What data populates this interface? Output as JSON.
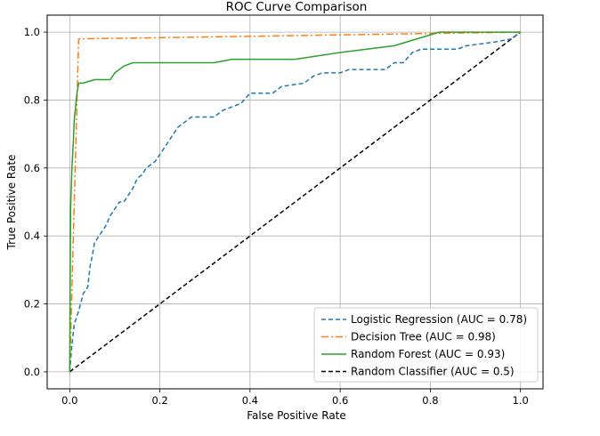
{
  "chart_data": {
    "type": "line",
    "title": "ROC Curve Comparison",
    "xlabel": "False Positive Rate",
    "ylabel": "True Positive Rate",
    "xlim": [
      -0.05,
      1.05
    ],
    "ylim": [
      -0.05,
      1.05
    ],
    "xticks": [
      "0.0",
      "0.2",
      "0.4",
      "0.6",
      "0.8",
      "1.0"
    ],
    "yticks": [
      "0.0",
      "0.2",
      "0.4",
      "0.6",
      "0.8",
      "1.0"
    ],
    "grid": true,
    "legend_position": "lower-right",
    "series": [
      {
        "name": "Logistic Regression (AUC = 0.78)",
        "color": "#1f77b4",
        "linestyle": "dashed",
        "points": [
          [
            0,
            0
          ],
          [
            0.005,
            0.08
          ],
          [
            0.01,
            0.14
          ],
          [
            0.02,
            0.18
          ],
          [
            0.03,
            0.23
          ],
          [
            0.04,
            0.25
          ],
          [
            0.045,
            0.31
          ],
          [
            0.05,
            0.34
          ],
          [
            0.055,
            0.38
          ],
          [
            0.06,
            0.39
          ],
          [
            0.07,
            0.41
          ],
          [
            0.08,
            0.43
          ],
          [
            0.09,
            0.46
          ],
          [
            0.1,
            0.48
          ],
          [
            0.11,
            0.5
          ],
          [
            0.12,
            0.5
          ],
          [
            0.13,
            0.52
          ],
          [
            0.14,
            0.54
          ],
          [
            0.15,
            0.57
          ],
          [
            0.16,
            0.58
          ],
          [
            0.17,
            0.6
          ],
          [
            0.18,
            0.61
          ],
          [
            0.19,
            0.62
          ],
          [
            0.2,
            0.64
          ],
          [
            0.21,
            0.66
          ],
          [
            0.22,
            0.68
          ],
          [
            0.23,
            0.7
          ],
          [
            0.24,
            0.72
          ],
          [
            0.25,
            0.73
          ],
          [
            0.27,
            0.75
          ],
          [
            0.32,
            0.75
          ],
          [
            0.34,
            0.77
          ],
          [
            0.38,
            0.79
          ],
          [
            0.4,
            0.82
          ],
          [
            0.45,
            0.82
          ],
          [
            0.47,
            0.84
          ],
          [
            0.52,
            0.85
          ],
          [
            0.54,
            0.87
          ],
          [
            0.56,
            0.88
          ],
          [
            0.6,
            0.88
          ],
          [
            0.62,
            0.89
          ],
          [
            0.7,
            0.89
          ],
          [
            0.72,
            0.91
          ],
          [
            0.74,
            0.91
          ],
          [
            0.76,
            0.94
          ],
          [
            0.78,
            0.95
          ],
          [
            0.86,
            0.95
          ],
          [
            0.88,
            0.96
          ],
          [
            0.94,
            0.97
          ],
          [
            0.98,
            0.98
          ],
          [
            1.0,
            1.0
          ]
        ]
      },
      {
        "name": "Decision Tree (AUC = 0.98)",
        "color": "#ff7f0e",
        "linestyle": "dashdot",
        "points": [
          [
            0,
            0
          ],
          [
            0.02,
            0.98
          ],
          [
            1.0,
            1.0
          ]
        ]
      },
      {
        "name": "Random Forest (AUC = 0.93)",
        "color": "#2ca02c",
        "linestyle": "solid",
        "points": [
          [
            0,
            0
          ],
          [
            0.002,
            0.48
          ],
          [
            0.005,
            0.6
          ],
          [
            0.008,
            0.68
          ],
          [
            0.01,
            0.74
          ],
          [
            0.013,
            0.78
          ],
          [
            0.016,
            0.82
          ],
          [
            0.02,
            0.85
          ],
          [
            0.03,
            0.85
          ],
          [
            0.055,
            0.86
          ],
          [
            0.09,
            0.86
          ],
          [
            0.1,
            0.88
          ],
          [
            0.12,
            0.9
          ],
          [
            0.14,
            0.91
          ],
          [
            0.32,
            0.91
          ],
          [
            0.36,
            0.92
          ],
          [
            0.5,
            0.92
          ],
          [
            0.6,
            0.94
          ],
          [
            0.72,
            0.96
          ],
          [
            0.82,
            1.0
          ],
          [
            1.0,
            1.0
          ]
        ]
      },
      {
        "name": "Random Classifier (AUC = 0.5)",
        "color": "#000000",
        "linestyle": "dashed",
        "points": [
          [
            0,
            0
          ],
          [
            1,
            1
          ]
        ]
      }
    ]
  }
}
